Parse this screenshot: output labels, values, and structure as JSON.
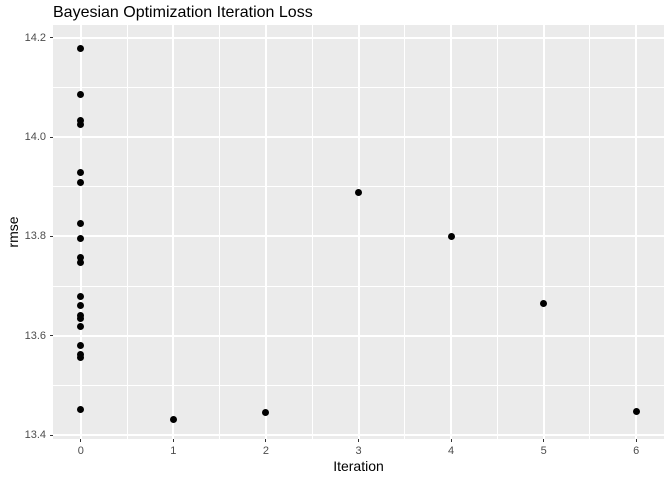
{
  "title": "Bayesian Optimization Iteration Loss",
  "colors": {
    "page_bg": "#FFFFFF",
    "panel_bg": "#EBEBEB",
    "grid_major": "#FFFFFF",
    "grid_minor": "#FFFFFF",
    "point": "#000000",
    "tick_label": "#4D4D4D",
    "tick_mark": "#333333",
    "title_text": "#000000"
  },
  "chart_data": {
    "type": "scatter",
    "title": "Bayesian Optimization Iteration Loss",
    "xlabel": "Iteration",
    "ylabel": "rmse",
    "xlim": [
      -0.3,
      6.3
    ],
    "ylim": [
      13.392,
      14.226
    ],
    "grid": true,
    "legend": false,
    "x_ticks": {
      "values": [
        0,
        1,
        2,
        3,
        4,
        5,
        6
      ],
      "labels": [
        "0",
        "1",
        "2",
        "3",
        "4",
        "5",
        "6"
      ]
    },
    "y_ticks": {
      "values": [
        13.4,
        13.6,
        13.8,
        14.0,
        14.2
      ],
      "labels": [
        "13.4",
        "13.6",
        "13.8",
        "14.0",
        "14.2"
      ]
    },
    "x_minor": [
      0.5,
      1.5,
      2.5,
      3.5,
      4.5,
      5.5
    ],
    "y_minor": [
      13.5,
      13.7,
      13.9,
      14.1
    ],
    "points": [
      {
        "x": 0,
        "y": 14.178
      },
      {
        "x": 0,
        "y": 14.085
      },
      {
        "x": 0,
        "y": 14.033
      },
      {
        "x": 0,
        "y": 14.026
      },
      {
        "x": 0,
        "y": 13.929
      },
      {
        "x": 0,
        "y": 13.909
      },
      {
        "x": 0,
        "y": 13.827
      },
      {
        "x": 0,
        "y": 13.796
      },
      {
        "x": 0,
        "y": 13.758
      },
      {
        "x": 0,
        "y": 13.748
      },
      {
        "x": 0,
        "y": 13.68
      },
      {
        "x": 0,
        "y": 13.661
      },
      {
        "x": 0,
        "y": 13.64
      },
      {
        "x": 0,
        "y": 13.634
      },
      {
        "x": 0,
        "y": 13.618
      },
      {
        "x": 0,
        "y": 13.58
      },
      {
        "x": 0,
        "y": 13.562
      },
      {
        "x": 0,
        "y": 13.556
      },
      {
        "x": 0,
        "y": 13.452
      },
      {
        "x": 1,
        "y": 13.431
      },
      {
        "x": 2,
        "y": 13.445
      },
      {
        "x": 3,
        "y": 13.888
      },
      {
        "x": 4,
        "y": 13.799
      },
      {
        "x": 5,
        "y": 13.664
      },
      {
        "x": 6,
        "y": 13.447
      }
    ]
  }
}
